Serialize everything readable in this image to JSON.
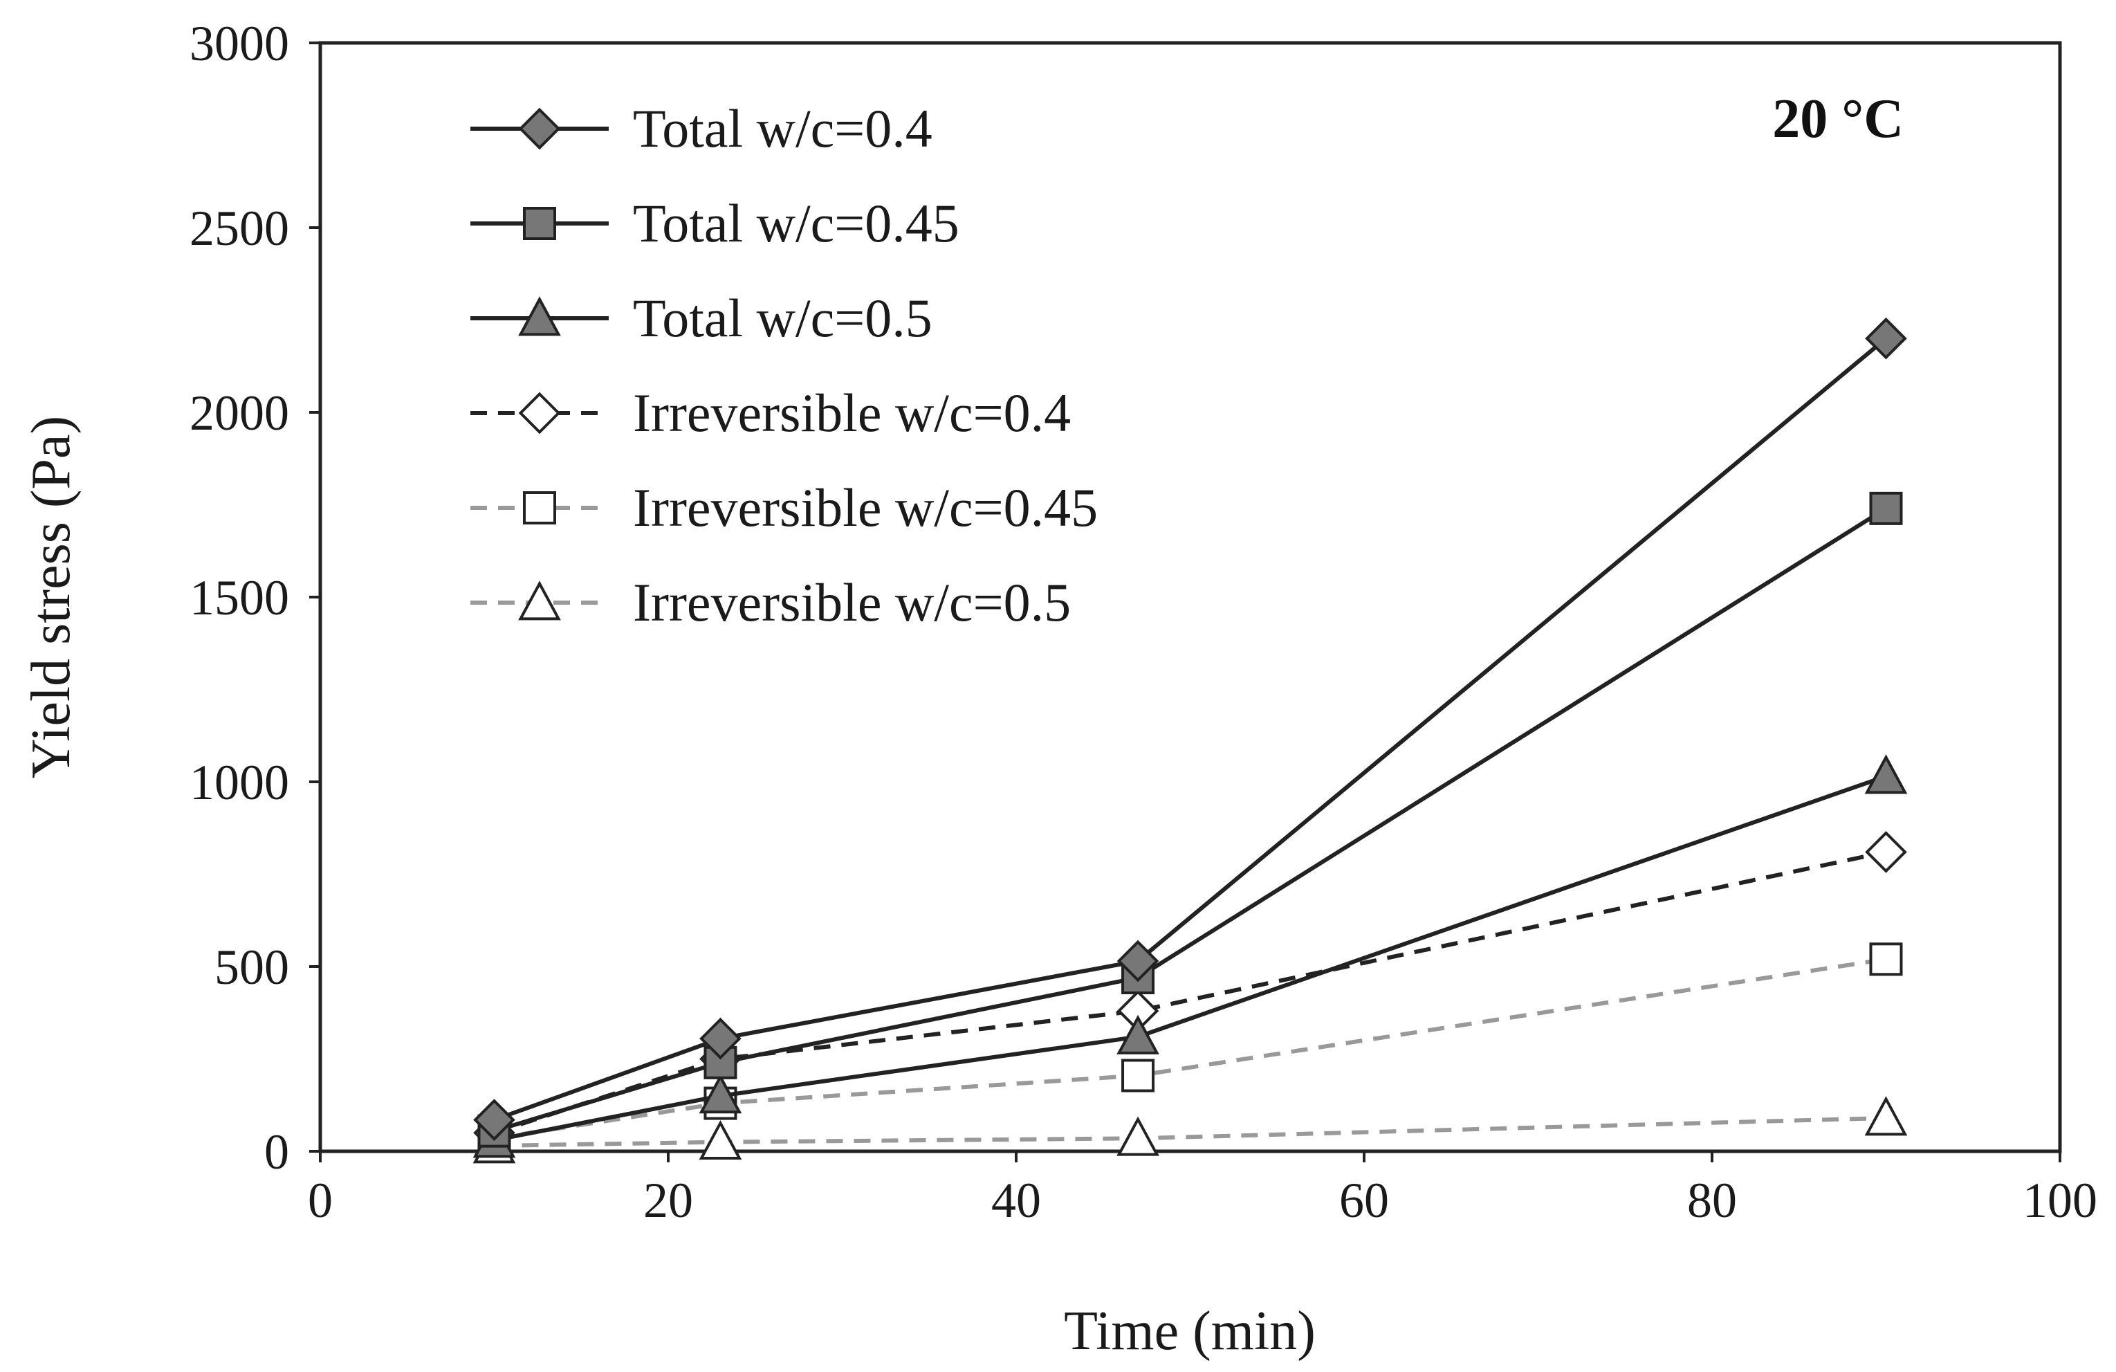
{
  "chart_data": {
    "type": "line",
    "title": "",
    "annotation": "20 °C",
    "xlabel": "Time (min)",
    "ylabel": "Yield stress (Pa)",
    "xlim": [
      0,
      100
    ],
    "ylim": [
      0,
      3000
    ],
    "xticks": [
      0,
      20,
      40,
      60,
      80,
      100
    ],
    "yticks": [
      0,
      500,
      1000,
      1500,
      2000,
      2500,
      3000
    ],
    "grid": false,
    "legend_position": "top-left",
    "series": [
      {
        "name": "Total w/c=0.4",
        "x": [
          10,
          23,
          47,
          90
        ],
        "y": [
          85,
          305,
          515,
          2200
        ],
        "marker": "diamond",
        "fill": "#777777",
        "line_color": "#222222",
        "dash": "solid"
      },
      {
        "name": "Total w/c=0.45",
        "x": [
          10,
          23,
          47,
          90
        ],
        "y": [
          55,
          240,
          470,
          1740
        ],
        "marker": "square",
        "fill": "#777777",
        "line_color": "#222222",
        "dash": "solid"
      },
      {
        "name": "Total w/c=0.5",
        "x": [
          10,
          23,
          47,
          90
        ],
        "y": [
          30,
          150,
          310,
          1015
        ],
        "marker": "triangle",
        "fill": "#777777",
        "line_color": "#222222",
        "dash": "solid"
      },
      {
        "name": "Irreversible w/c=0.4",
        "x": [
          10,
          23,
          47,
          90
        ],
        "y": [
          50,
          250,
          380,
          810
        ],
        "marker": "diamond",
        "fill": "#ffffff",
        "line_color": "#222222",
        "dash": "dashed"
      },
      {
        "name": "Irreversible w/c=0.45",
        "x": [
          10,
          23,
          47,
          90
        ],
        "y": [
          35,
          130,
          205,
          520
        ],
        "marker": "square",
        "fill": "#ffffff",
        "line_color": "#999999",
        "dash": "dashed"
      },
      {
        "name": "Irreversible w/c=0.5",
        "x": [
          10,
          23,
          47,
          90
        ],
        "y": [
          15,
          25,
          35,
          90
        ],
        "marker": "triangle",
        "fill": "#ffffff",
        "line_color": "#999999",
        "dash": "dashed"
      }
    ]
  }
}
